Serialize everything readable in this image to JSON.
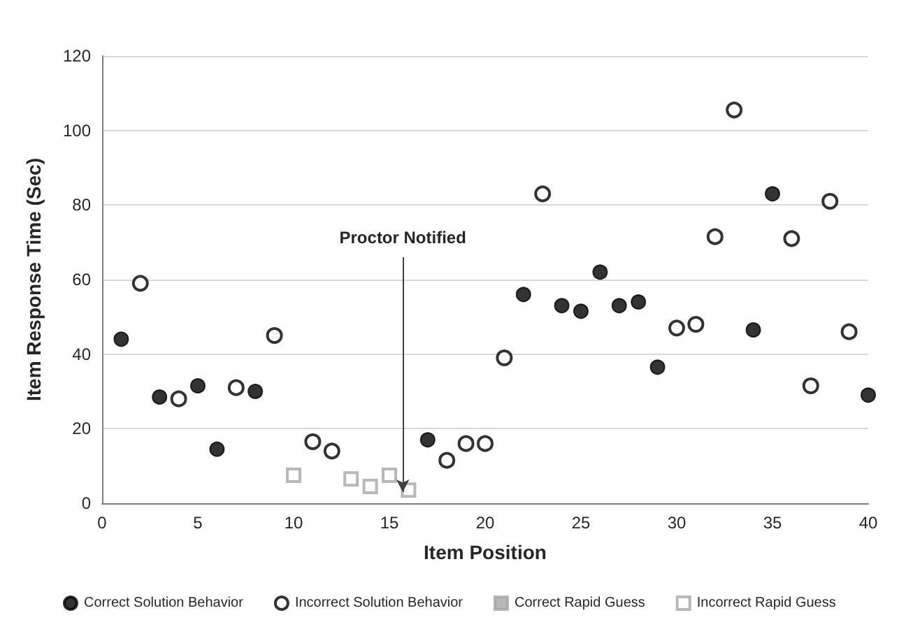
{
  "chart_data": {
    "type": "scatter",
    "xlabel": "Item Position",
    "ylabel": "Item Response Time (Sec)",
    "xlim": [
      0,
      40
    ],
    "xticks": [
      0,
      5,
      10,
      15,
      20,
      25,
      30,
      35,
      40
    ],
    "ylim": [
      0,
      120
    ],
    "yticks": [
      0,
      20,
      40,
      60,
      80,
      100,
      120
    ],
    "grid": "y",
    "legend": "bottom",
    "annotations": [
      {
        "text": "Proctor Notified",
        "x": 15.7,
        "y": 3
      }
    ],
    "series": [
      {
        "name": "Correct Solution Behavior",
        "color": "#000000",
        "marker": "circle",
        "x": [
          1,
          3,
          5,
          6,
          8,
          17,
          22,
          24,
          25,
          26,
          27,
          28,
          29,
          34,
          35,
          40
        ],
        "values": [
          44,
          28.5,
          31.5,
          14.5,
          30,
          17,
          56,
          53,
          51.5,
          62,
          53,
          54,
          36.5,
          46.5,
          83,
          29
        ]
      },
      {
        "name": "Incorrect Solution Behavior",
        "color": "#000000",
        "marker": "circle",
        "x": [
          2,
          4,
          7,
          9,
          11,
          12,
          18,
          19,
          20,
          21,
          23,
          30,
          31,
          32,
          33,
          36,
          37,
          38,
          39
        ],
        "values": [
          59,
          28,
          31,
          45,
          16.5,
          14,
          11.5,
          16,
          16,
          39,
          83,
          47,
          48,
          71.5,
          105.5,
          71,
          31.5,
          81,
          46
        ]
      },
      {
        "name": "Correct Rapid Guess",
        "color": "#a6a6a6",
        "marker": "square"
      },
      {
        "name": "Incorrect Rapid Guess",
        "color": "#a6a6a6",
        "marker": "square",
        "x": [
          10,
          13,
          14,
          15,
          16
        ],
        "values": [
          7.5,
          6.5,
          4.5,
          7.5,
          3.5
        ]
      }
    ]
  }
}
